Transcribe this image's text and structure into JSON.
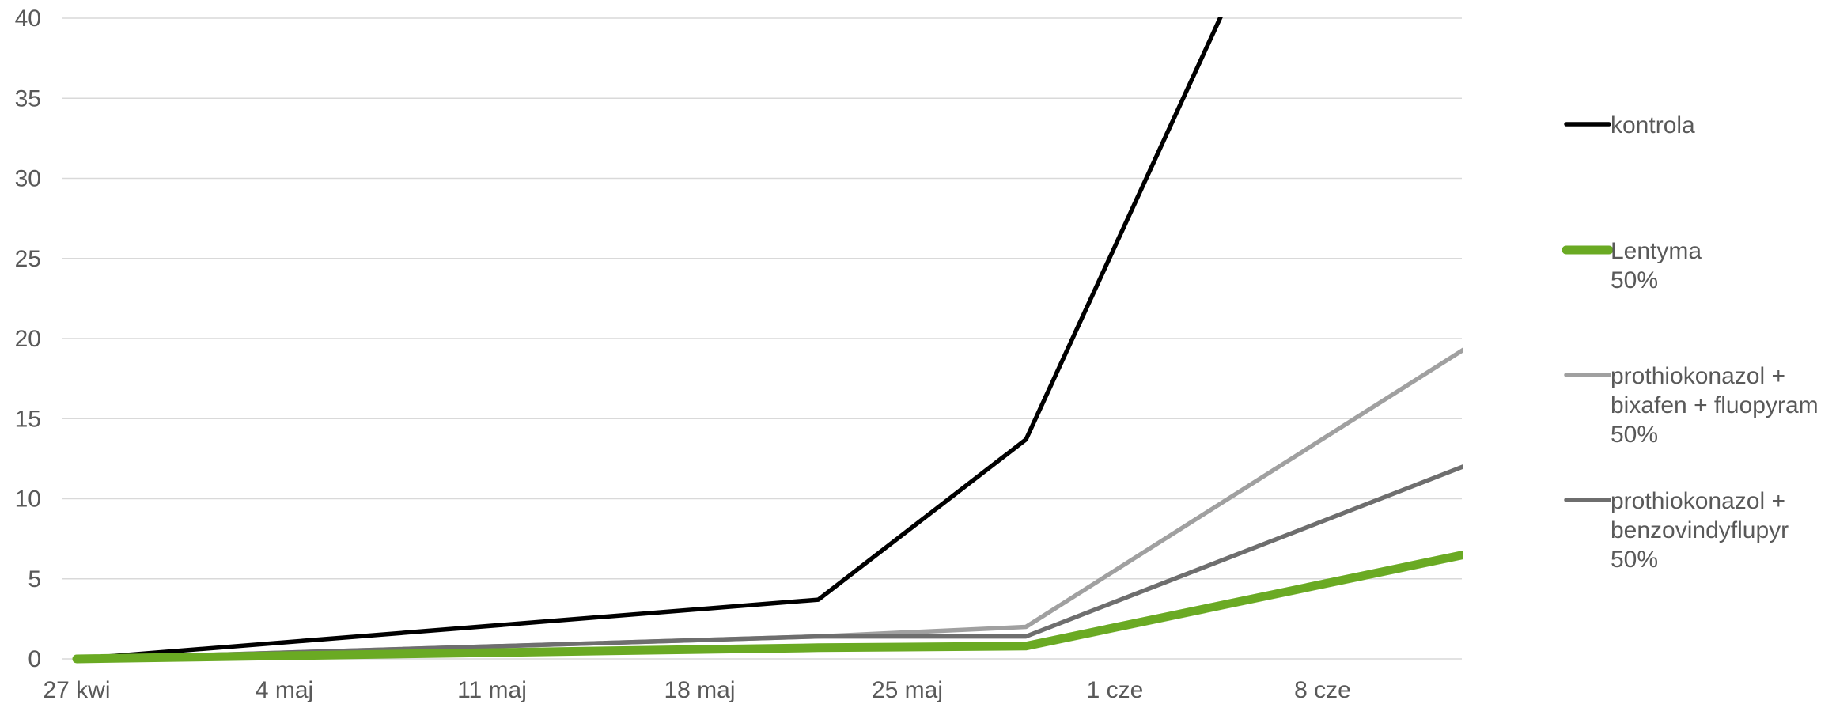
{
  "chart_data": {
    "type": "line",
    "title": "",
    "xlabel": "",
    "ylabel": "",
    "x_tick_labels": [
      "27 kwi",
      "4 maj",
      "11 maj",
      "18 maj",
      "25 maj",
      "1 cze",
      "8 cze"
    ],
    "x_tick_dates": [
      "2020-04-27",
      "2020-05-04",
      "2020-05-11",
      "2020-05-18",
      "2020-05-25",
      "2020-06-01",
      "2020-06-08"
    ],
    "xlim": [
      "2020-04-27",
      "2020-06-14"
    ],
    "ylim": [
      0,
      40
    ],
    "y_ticks": [
      0,
      5,
      10,
      15,
      20,
      25,
      30,
      35,
      40
    ],
    "grid": true,
    "legend_position": "right",
    "series": [
      {
        "name": "kontrola",
        "legend_lines": [
          "kontrola"
        ],
        "color": "#000000",
        "x": [
          "2020-04-27",
          "2020-05-22",
          "2020-05-29",
          "2020-06-13"
        ],
        "y": [
          0,
          3.7,
          13.7,
          74
        ]
      },
      {
        "name": "Lentyma 50%",
        "legend_lines": [
          "Lentyma",
          "50%"
        ],
        "color": "#6aaa23",
        "x": [
          "2020-04-27",
          "2020-05-22",
          "2020-05-29",
          "2020-06-13"
        ],
        "y": [
          0,
          0.7,
          0.8,
          6.6
        ]
      },
      {
        "name": "prothiokonazol + bixafen + fluopyram 50%",
        "legend_lines": [
          "prothiokonazol +",
          "bixafen + fluopyram",
          "50%"
        ],
        "color": "#a0a0a0",
        "x": [
          "2020-04-27",
          "2020-05-22",
          "2020-05-29",
          "2020-06-13"
        ],
        "y": [
          0,
          1.4,
          2.0,
          19.6
        ]
      },
      {
        "name": "prothiokonazol + benzovindyflupyr 50%",
        "legend_lines": [
          "prothiokonazol +",
          "benzovindyflupyr",
          "50%"
        ],
        "color": "#6e6e6e",
        "x": [
          "2020-04-27",
          "2020-05-22",
          "2020-05-29",
          "2020-06-13"
        ],
        "y": [
          0,
          1.4,
          1.4,
          12.2
        ]
      }
    ]
  }
}
